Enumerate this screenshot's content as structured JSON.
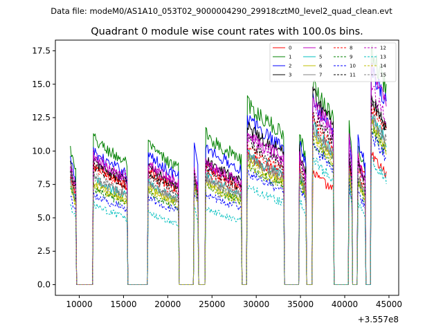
{
  "chart_data": {
    "type": "line",
    "suptitle": "Data file: modeM0/AS1A10_053T02_9000004290_29918cztM0_level2_quad_clean.evt",
    "title": "Quadrant 0 module wise count rates with 100.0s bins.",
    "xlabel": "",
    "ylabel": "",
    "x_offset_label": "+3.557e8",
    "xlim": [
      7300,
      46100
    ],
    "ylim": [
      -0.8,
      18.3
    ],
    "x_ticks": [
      10000,
      15000,
      20000,
      25000,
      30000,
      35000,
      40000,
      45000
    ],
    "x_tick_labels": [
      "10000",
      "15000",
      "20000",
      "25000",
      "30000",
      "35000",
      "40000",
      "45000"
    ],
    "y_ticks": [
      0.0,
      2.5,
      5.0,
      7.5,
      10.0,
      12.5,
      15.0,
      17.5
    ],
    "y_tick_labels": [
      "0.0",
      "2.5",
      "5.0",
      "7.5",
      "10.0",
      "12.5",
      "15.0",
      "17.5"
    ],
    "legend_position": "top-right",
    "legend_columns": 4,
    "segments_on": [
      [
        9000,
        9600
      ],
      [
        11600,
        15400
      ],
      [
        17800,
        21200
      ],
      [
        23000,
        23400
      ],
      [
        24300,
        28300
      ],
      [
        29000,
        33100
      ],
      [
        34900,
        35600
      ],
      [
        36400,
        38700
      ],
      [
        40500,
        40800
      ],
      [
        41500,
        42300
      ],
      [
        43000,
        44700
      ]
    ],
    "series": [
      {
        "name": "0",
        "color": "#ff0000",
        "dashed": false,
        "levels": [
          8.0,
          9.0,
          8.7,
          7.8,
          9.0,
          9.8,
          8.3,
          8.5,
          9.0,
          9.6,
          9.9
        ]
      },
      {
        "name": "1",
        "color": "#008000",
        "dashed": false,
        "levels": [
          10.2,
          11.0,
          10.5,
          8.5,
          11.3,
          13.6,
          11.5,
          15.2,
          11.8,
          10.5,
          17.8
        ]
      },
      {
        "name": "2",
        "color": "#0000ff",
        "dashed": false,
        "levels": [
          9.4,
          10.0,
          9.8,
          10.5,
          10.4,
          12.5,
          10.8,
          13.9,
          11.4,
          10.9,
          16.5
        ]
      },
      {
        "name": "3",
        "color": "#000000",
        "dashed": false,
        "levels": [
          9.0,
          9.3,
          8.9,
          8.5,
          9.4,
          11.9,
          10.2,
          14.5,
          9.6,
          9.4,
          14.3
        ]
      },
      {
        "name": "4",
        "color": "#bf00bf",
        "dashed": false,
        "levels": [
          8.5,
          9.5,
          9.2,
          8.6,
          9.2,
          11.4,
          9.8,
          13.9,
          11.3,
          9.6,
          16.5
        ]
      },
      {
        "name": "5",
        "color": "#00bfbf",
        "dashed": false,
        "levels": [
          7.6,
          8.0,
          7.7,
          7.8,
          8.2,
          9.9,
          8.4,
          11.9,
          8.8,
          8.1,
          12.9
        ]
      },
      {
        "name": "6",
        "color": "#bfbf00",
        "dashed": false,
        "levels": [
          7.6,
          7.5,
          7.3,
          7.7,
          7.8,
          9.4,
          8.3,
          11.4,
          8.4,
          7.9,
          12.4
        ]
      },
      {
        "name": "7",
        "color": "#808080",
        "dashed": false,
        "levels": [
          7.9,
          8.0,
          7.6,
          7.9,
          8.1,
          9.7,
          8.6,
          11.9,
          8.7,
          8.2,
          12.8
        ]
      },
      {
        "name": "8",
        "color": "#ff0000",
        "dashed": true,
        "levels": [
          8.3,
          8.8,
          8.3,
          8.2,
          8.6,
          10.4,
          9.0,
          12.4,
          9.3,
          8.7,
          13.7
        ]
      },
      {
        "name": "9",
        "color": "#008000",
        "dashed": true,
        "levels": [
          7.4,
          7.3,
          7.0,
          7.6,
          7.5,
          8.9,
          7.9,
          10.9,
          8.1,
          7.6,
          11.9
        ]
      },
      {
        "name": "10",
        "color": "#0000ff",
        "dashed": true,
        "levels": [
          6.7,
          6.8,
          6.6,
          7.2,
          6.9,
          8.5,
          7.4,
          10.5,
          7.6,
          7.0,
          11.4
        ]
      },
      {
        "name": "11",
        "color": "#000000",
        "dashed": true,
        "levels": [
          8.6,
          9.0,
          8.4,
          8.4,
          8.8,
          10.8,
          9.2,
          12.9,
          9.6,
          9.0,
          14.2
        ]
      },
      {
        "name": "12",
        "color": "#bf00bf",
        "dashed": true,
        "levels": [
          8.9,
          9.7,
          9.0,
          8.7,
          9.1,
          11.2,
          9.7,
          13.4,
          10.0,
          9.3,
          15.0
        ]
      },
      {
        "name": "13",
        "color": "#00bfbf",
        "dashed": true,
        "levels": [
          6.0,
          6.0,
          5.4,
          5.8,
          5.8,
          7.4,
          6.4,
          9.5,
          7.5,
          6.2,
          9.5
        ]
      },
      {
        "name": "14",
        "color": "#bfbf00",
        "dashed": true,
        "levels": [
          7.3,
          7.6,
          7.2,
          7.5,
          7.5,
          9.1,
          8.0,
          11.1,
          8.3,
          7.8,
          12.1
        ]
      },
      {
        "name": "15",
        "color": "#808080",
        "dashed": true,
        "levels": [
          7.8,
          8.2,
          7.7,
          7.9,
          8.0,
          9.7,
          8.5,
          11.7,
          8.7,
          8.1,
          12.7
        ]
      }
    ]
  }
}
